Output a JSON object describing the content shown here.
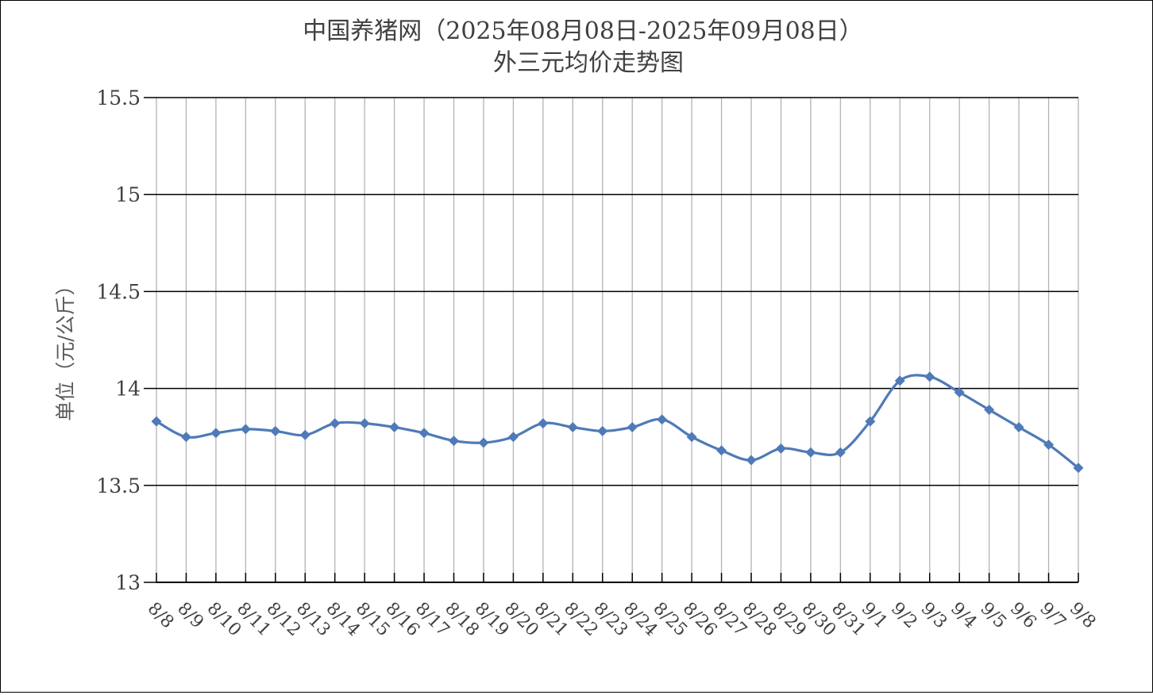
{
  "chart_data": {
    "type": "line",
    "title": "中国养猪网（2025年08月08日-2025年09月08日）",
    "subtitle": "外三元均价走势图",
    "xlabel": "",
    "ylabel": "单位（元/公斤）",
    "ylim": [
      13,
      15.5
    ],
    "yticks": [
      13,
      13.5,
      14,
      14.5,
      15,
      15.5
    ],
    "ytick_labels": [
      "13",
      "13.5",
      "14",
      "14.5",
      "15",
      "15.5"
    ],
    "categories": [
      "8/8",
      "8/9",
      "8/10",
      "8/11",
      "8/12",
      "8/13",
      "8/14",
      "8/15",
      "8/16",
      "8/17",
      "8/18",
      "8/19",
      "8/20",
      "8/21",
      "8/22",
      "8/23",
      "8/24",
      "8/25",
      "8/26",
      "8/27",
      "8/28",
      "8/29",
      "8/30",
      "8/31",
      "9/1",
      "9/2",
      "9/3",
      "9/4",
      "9/5",
      "9/6",
      "9/7",
      "9/8"
    ],
    "series": [
      {
        "values": [
          13.83,
          13.75,
          13.77,
          13.79,
          13.78,
          13.76,
          13.82,
          13.82,
          13.8,
          13.77,
          13.73,
          13.72,
          13.75,
          13.82,
          13.8,
          13.78,
          13.8,
          13.84,
          13.75,
          13.68,
          13.63,
          13.69,
          13.67,
          13.67,
          13.83,
          14.04,
          14.06,
          13.98,
          13.89,
          13.8,
          13.71,
          13.59
        ],
        "color": "#4f7ab8"
      }
    ],
    "grid": {
      "horizontal": true,
      "vertical": true,
      "horizontal_color": "#000000",
      "vertical_color": "#b3b3b3"
    },
    "smooth": true,
    "marker": "diamond",
    "legend": "none"
  }
}
